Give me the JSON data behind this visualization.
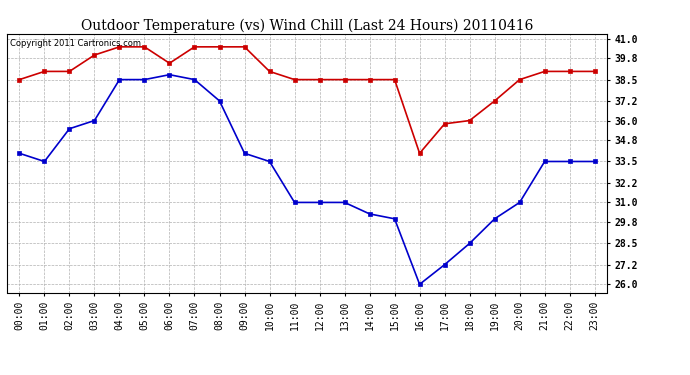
{
  "title": "Outdoor Temperature (vs) Wind Chill (Last 24 Hours) 20110416",
  "copyright": "Copyright 2011 Cartronics.com",
  "hours": [
    0,
    1,
    2,
    3,
    4,
    5,
    6,
    7,
    8,
    9,
    10,
    11,
    12,
    13,
    14,
    15,
    16,
    17,
    18,
    19,
    20,
    21,
    22,
    23
  ],
  "temp_red": [
    38.5,
    39.0,
    39.0,
    40.0,
    40.5,
    40.5,
    39.5,
    40.5,
    40.5,
    40.5,
    39.0,
    38.5,
    38.5,
    38.5,
    38.5,
    38.5,
    34.0,
    35.8,
    36.0,
    37.2,
    38.5,
    39.0,
    39.0,
    39.0
  ],
  "wind_blue": [
    34.0,
    33.5,
    35.5,
    36.0,
    38.5,
    38.5,
    38.8,
    38.5,
    37.2,
    34.0,
    33.5,
    31.0,
    31.0,
    31.0,
    30.3,
    30.0,
    26.0,
    27.2,
    28.5,
    30.0,
    31.0,
    33.5,
    33.5,
    33.5
  ],
  "ylim": [
    25.5,
    41.3
  ],
  "yticks": [
    26.0,
    27.2,
    28.5,
    29.8,
    31.0,
    32.2,
    33.5,
    34.8,
    36.0,
    37.2,
    38.5,
    39.8,
    41.0
  ],
  "red_color": "#cc0000",
  "blue_color": "#0000cc",
  "bg_color": "#ffffff",
  "grid_color": "#b0b0b0",
  "title_fontsize": 10,
  "tick_fontsize": 7,
  "copyright_fontsize": 6
}
